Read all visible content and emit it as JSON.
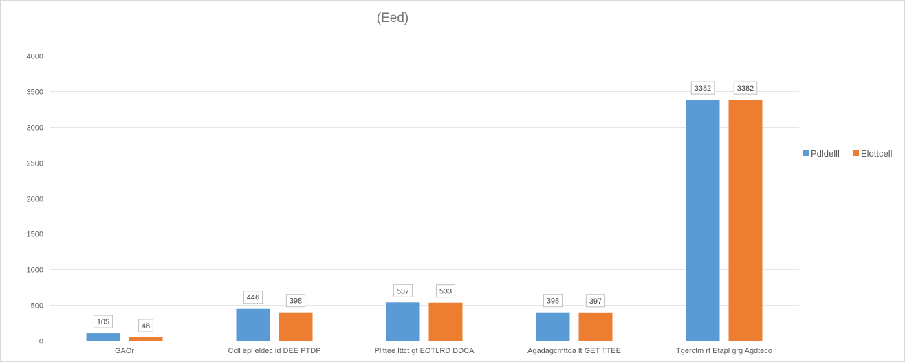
{
  "chart_data": {
    "type": "bar",
    "title": "(Eed)",
    "xlabel": "",
    "ylabel": "",
    "ylim": [
      0,
      4000
    ],
    "yticks": [
      0,
      500,
      1000,
      1500,
      2000,
      2500,
      3000,
      3500,
      4000
    ],
    "grid": true,
    "legend_position": "right",
    "categories": [
      "GAOr",
      "Ccll epl eldec ld DEE PTDP",
      "Pllttee lttct gt EOTLRD DDCA",
      "Agadagcmttda lt GET TTEE",
      "Tgerctm rt Etapl grg Agdteco"
    ],
    "series": [
      {
        "name": "Pdldelll",
        "color": "#5b9bd5",
        "values": [
          105,
          446,
          537,
          398,
          3382
        ]
      },
      {
        "name": "Elottcell",
        "color": "#ed7d31",
        "values": [
          48,
          398,
          533,
          397,
          3382
        ]
      }
    ]
  }
}
